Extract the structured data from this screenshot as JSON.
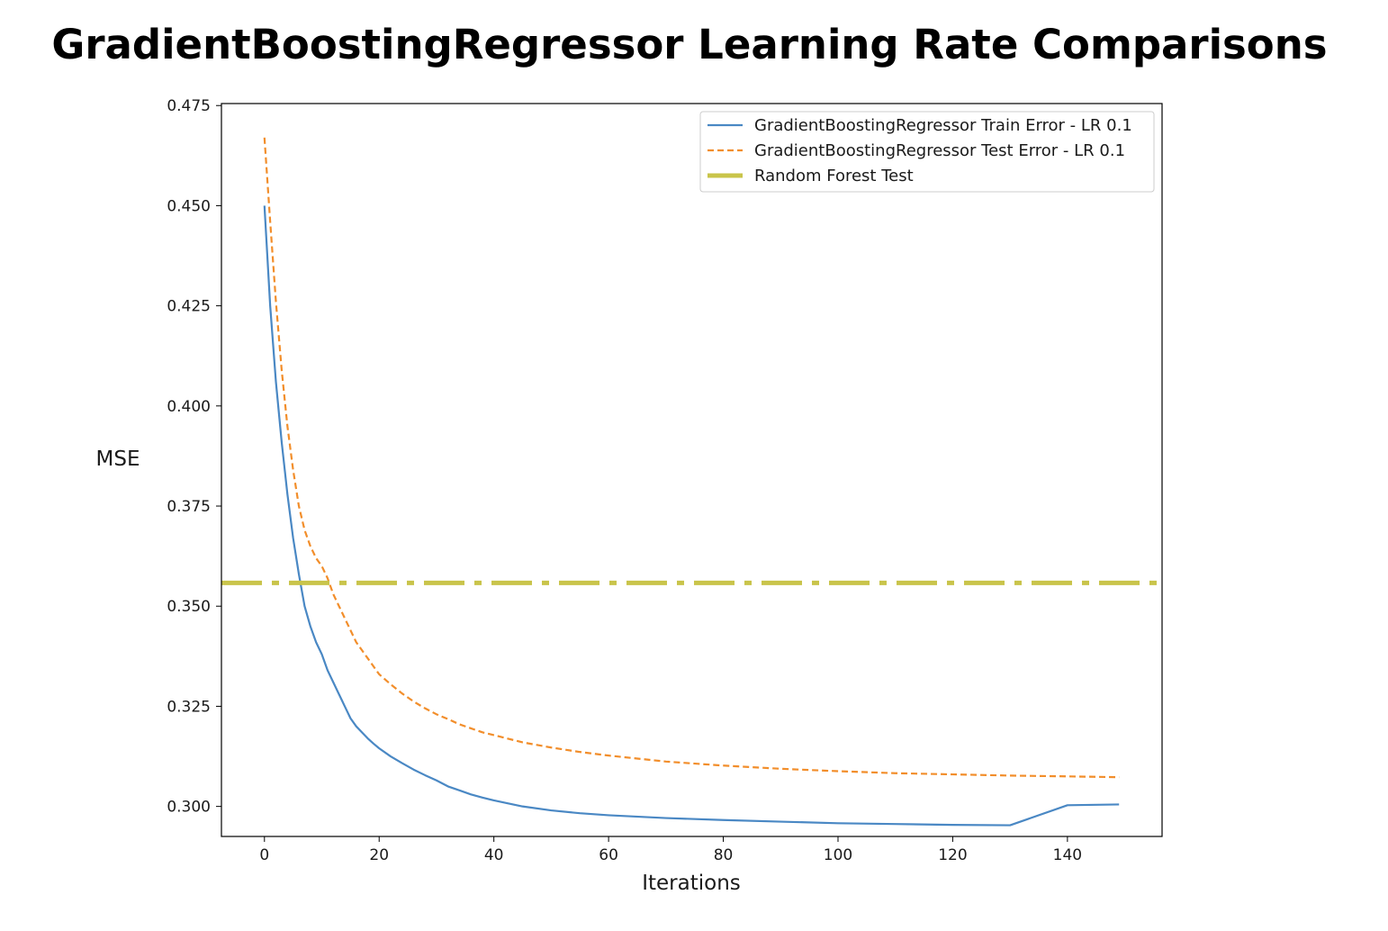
{
  "chart_data": {
    "type": "line",
    "title": "GradientBoostingRegressor Learning Rate Comparisons",
    "xlabel": "Iterations",
    "ylabel": "MSE",
    "xlim": [
      -7.5,
      156.5
    ],
    "ylim": [
      0.2925,
      0.4755
    ],
    "xticks": [
      0,
      20,
      40,
      60,
      80,
      100,
      120,
      140
    ],
    "yticks": [
      0.3,
      0.325,
      0.35,
      0.375,
      0.4,
      0.425,
      0.45,
      0.475
    ],
    "ytick_labels": [
      "0.300",
      "0.325",
      "0.350",
      "0.375",
      "0.400",
      "0.425",
      "0.450",
      "0.475"
    ],
    "legend_position": "upper right",
    "series": [
      {
        "name": "GradientBoostingRegressor Train Error - LR 0.1",
        "color": "#4a88c4",
        "style": "solid",
        "x": [
          0,
          1,
          2,
          3,
          4,
          5,
          6,
          7,
          8,
          9,
          10,
          11,
          12,
          13,
          14,
          15,
          16,
          17,
          18,
          19,
          20,
          22,
          24,
          26,
          28,
          30,
          32,
          34,
          36,
          38,
          40,
          45,
          50,
          55,
          60,
          70,
          80,
          90,
          100,
          110,
          120,
          130,
          140,
          149
        ],
        "values": [
          0.45,
          0.425,
          0.406,
          0.391,
          0.378,
          0.367,
          0.358,
          0.35,
          0.345,
          0.341,
          0.338,
          0.334,
          0.331,
          0.328,
          0.325,
          0.322,
          0.32,
          0.3185,
          0.317,
          0.3157,
          0.3145,
          0.3125,
          0.3108,
          0.3092,
          0.3078,
          0.3065,
          0.305,
          0.304,
          0.303,
          0.3022,
          0.3015,
          0.3,
          0.299,
          0.2983,
          0.2978,
          0.2971,
          0.2966,
          0.2962,
          0.2958,
          0.2956,
          0.2954,
          0.2953,
          0.3003,
          0.3005
        ]
      },
      {
        "name": "GradientBoostingRegressor Test Error - LR 0.1",
        "color": "#f28e2b",
        "style": "dashed",
        "x": [
          0,
          1,
          2,
          3,
          4,
          5,
          6,
          7,
          8,
          9,
          10,
          11,
          12,
          13,
          14,
          15,
          16,
          17,
          18,
          19,
          20,
          22,
          24,
          26,
          28,
          30,
          32,
          34,
          36,
          38,
          40,
          45,
          50,
          55,
          60,
          70,
          80,
          90,
          100,
          110,
          120,
          130,
          140,
          149
        ],
        "values": [
          0.467,
          0.446,
          0.426,
          0.409,
          0.395,
          0.384,
          0.375,
          0.369,
          0.365,
          0.362,
          0.36,
          0.357,
          0.353,
          0.35,
          0.347,
          0.344,
          0.341,
          0.339,
          0.337,
          0.335,
          0.333,
          0.3305,
          0.3282,
          0.3262,
          0.3245,
          0.323,
          0.3218,
          0.3205,
          0.3195,
          0.3185,
          0.3178,
          0.316,
          0.3147,
          0.3136,
          0.3127,
          0.3112,
          0.3102,
          0.3094,
          0.3088,
          0.3083,
          0.308,
          0.3077,
          0.3075,
          0.3073
        ]
      },
      {
        "name": "Random Forest Test",
        "color": "#c9c44a",
        "style": "dashdot",
        "horizontal_y": 0.3558
      }
    ]
  }
}
